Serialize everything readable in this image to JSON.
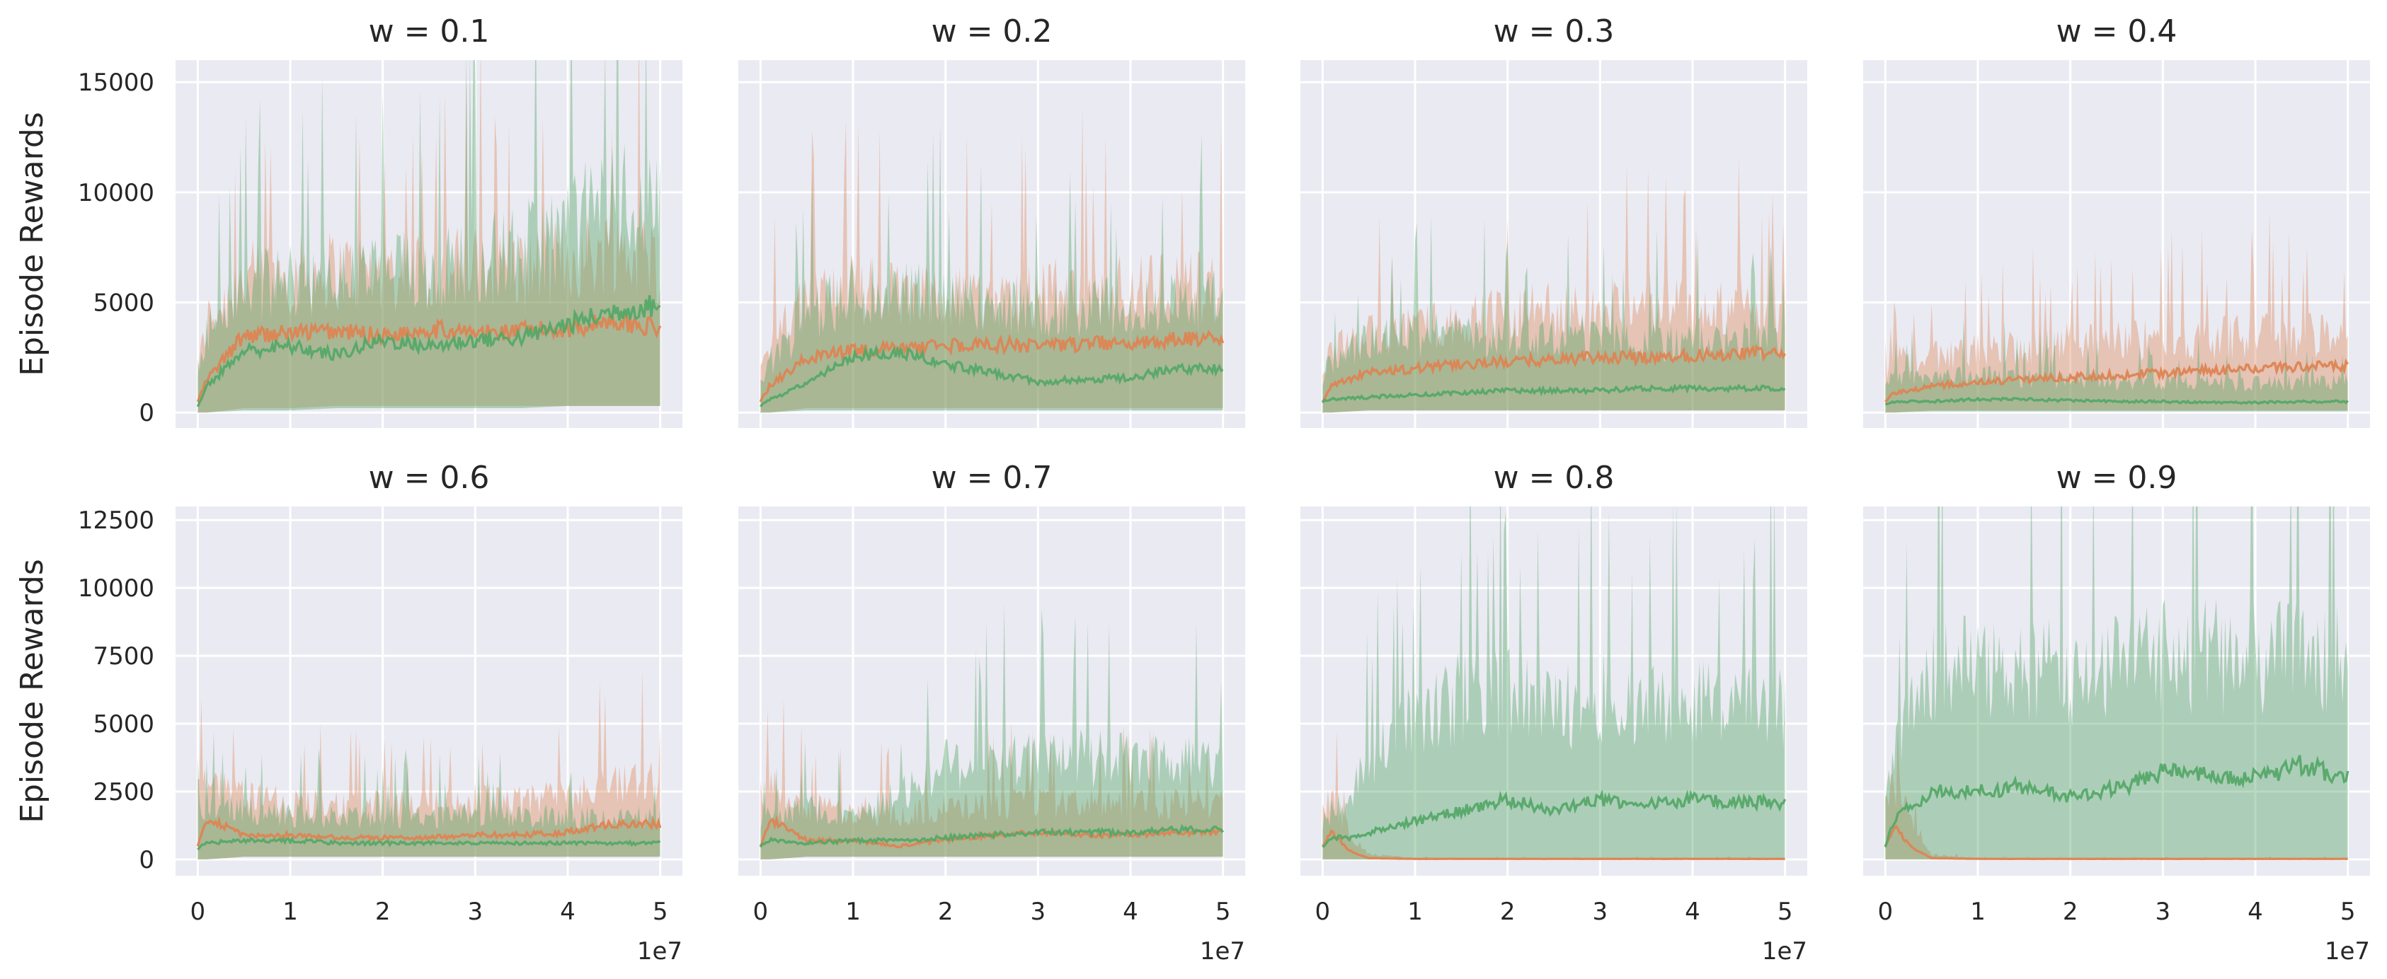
{
  "figure": {
    "ylabel": "Episode Rewards",
    "x_offset_text": "1e7",
    "colors": {
      "orange": "#dd8452",
      "green": "#55a868",
      "olive": "#a6915a"
    }
  },
  "chart_data": [
    {
      "type": "line",
      "title": "w = 0.1",
      "xlim": [
        0,
        50000000
      ],
      "ylim": [
        0,
        16000
      ],
      "grid": true,
      "x": [
        0,
        1000000,
        5000000,
        10000000,
        15000000,
        20000000,
        25000000,
        30000000,
        35000000,
        40000000,
        45000000,
        50000000
      ],
      "series": [
        {
          "color": "#dd8452",
          "values": [
            500,
            1500,
            3500,
            3600,
            3700,
            3500,
            3800,
            3600,
            3700,
            3800,
            4200,
            3800
          ],
          "band_upper": [
            2000,
            4500,
            6500,
            6800,
            7000,
            6800,
            7000,
            7200,
            7000,
            7500,
            8000,
            7500
          ],
          "band_lower": [
            0,
            0,
            200,
            200,
            300,
            300,
            300,
            300,
            300,
            300,
            300,
            300
          ]
        },
        {
          "color": "#55a868",
          "values": [
            300,
            1200,
            2800,
            3000,
            2600,
            3300,
            3000,
            3300,
            3400,
            4000,
            4600,
            4900
          ],
          "band_upper": [
            1500,
            4000,
            6000,
            6500,
            6500,
            7000,
            7000,
            7500,
            8000,
            9000,
            10500,
            10000
          ],
          "band_lower": [
            0,
            0,
            100,
            100,
            200,
            200,
            200,
            200,
            200,
            300,
            300,
            300
          ]
        }
      ]
    },
    {
      "type": "line",
      "title": "w = 0.2",
      "xlim": [
        0,
        50000000
      ],
      "ylim": [
        0,
        16000
      ],
      "grid": true,
      "x": [
        0,
        1000000,
        5000000,
        10000000,
        15000000,
        20000000,
        25000000,
        30000000,
        35000000,
        40000000,
        45000000,
        50000000
      ],
      "series": [
        {
          "color": "#dd8452",
          "values": [
            500,
            1200,
            2500,
            2800,
            2900,
            3000,
            3100,
            3000,
            3100,
            3200,
            3300,
            3300
          ],
          "band_upper": [
            2000,
            3500,
            5500,
            6000,
            5800,
            5800,
            5800,
            5800,
            6000,
            6000,
            6200,
            6000
          ],
          "band_lower": [
            0,
            0,
            200,
            200,
            200,
            200,
            200,
            200,
            200,
            200,
            200,
            200
          ]
        },
        {
          "color": "#55a868",
          "values": [
            300,
            600,
            1300,
            2600,
            2700,
            2200,
            1800,
            1400,
            1500,
            1600,
            2000,
            2000
          ],
          "band_upper": [
            1500,
            2500,
            4500,
            6000,
            5800,
            5500,
            5200,
            5200,
            5200,
            5200,
            5500,
            5500
          ],
          "band_lower": [
            0,
            0,
            100,
            100,
            100,
            100,
            100,
            100,
            100,
            100,
            100,
            100
          ]
        }
      ]
    },
    {
      "type": "line",
      "title": "w = 0.3",
      "xlim": [
        0,
        50000000
      ],
      "ylim": [
        0,
        16000
      ],
      "grid": true,
      "x": [
        0,
        1000000,
        5000000,
        10000000,
        15000000,
        20000000,
        25000000,
        30000000,
        35000000,
        40000000,
        45000000,
        50000000
      ],
      "series": [
        {
          "color": "#dd8452",
          "values": [
            500,
            1200,
            1800,
            2000,
            2200,
            2300,
            2400,
            2500,
            2500,
            2600,
            2700,
            2700
          ],
          "band_upper": [
            2000,
            3000,
            3800,
            4200,
            4500,
            4800,
            5000,
            5000,
            5000,
            5200,
            5200,
            5200
          ],
          "band_lower": [
            0,
            0,
            100,
            100,
            100,
            100,
            100,
            100,
            100,
            100,
            100,
            100
          ]
        },
        {
          "color": "#55a868",
          "values": [
            500,
            600,
            700,
            800,
            900,
            1000,
            1000,
            1000,
            1100,
            1100,
            1100,
            1100
          ],
          "band_upper": [
            1800,
            2500,
            3500,
            3800,
            3800,
            3600,
            3600,
            3600,
            3500,
            3500,
            3500,
            3500
          ],
          "band_lower": [
            0,
            0,
            100,
            100,
            100,
            100,
            100,
            100,
            100,
            100,
            100,
            100
          ]
        }
      ]
    },
    {
      "type": "line",
      "title": "w = 0.4",
      "xlim": [
        0,
        50000000
      ],
      "ylim": [
        0,
        16000
      ],
      "grid": true,
      "x": [
        0,
        1000000,
        5000000,
        10000000,
        15000000,
        20000000,
        25000000,
        30000000,
        35000000,
        40000000,
        45000000,
        50000000
      ],
      "series": [
        {
          "color": "#dd8452",
          "values": [
            500,
            900,
            1200,
            1400,
            1500,
            1600,
            1700,
            1800,
            1900,
            2000,
            2100,
            2100
          ],
          "band_upper": [
            2000,
            2500,
            2800,
            3000,
            3200,
            3400,
            3500,
            3600,
            3600,
            3800,
            3800,
            3800
          ],
          "band_lower": [
            0,
            0,
            100,
            100,
            100,
            100,
            100,
            100,
            100,
            100,
            100,
            100
          ]
        },
        {
          "color": "#55a868",
          "values": [
            400,
            500,
            500,
            600,
            600,
            550,
            500,
            500,
            450,
            450,
            500,
            500
          ],
          "band_upper": [
            1500,
            1800,
            1800,
            1800,
            1700,
            1600,
            1500,
            1500,
            1500,
            1400,
            1500,
            1500
          ],
          "band_lower": [
            0,
            0,
            50,
            50,
            50,
            50,
            50,
            50,
            50,
            50,
            50,
            50
          ]
        }
      ]
    },
    {
      "type": "line",
      "title": "w = 0.6",
      "xlim": [
        0,
        50000000
      ],
      "ylim": [
        0,
        13000
      ],
      "grid": true,
      "x": [
        0,
        1000000,
        5000000,
        10000000,
        15000000,
        20000000,
        25000000,
        30000000,
        35000000,
        40000000,
        45000000,
        50000000
      ],
      "series": [
        {
          "color": "#dd8452",
          "values": [
            500,
            1500,
            900,
            900,
            800,
            800,
            800,
            900,
            900,
            1000,
            1300,
            1300
          ],
          "band_upper": [
            2500,
            3000,
            2500,
            2200,
            2200,
            2200,
            2200,
            2400,
            2400,
            2600,
            3000,
            3000
          ],
          "band_lower": [
            0,
            0,
            100,
            100,
            100,
            100,
            100,
            100,
            100,
            100,
            100,
            100
          ]
        },
        {
          "color": "#55a868",
          "values": [
            400,
            600,
            700,
            700,
            600,
            600,
            600,
            600,
            600,
            600,
            600,
            600
          ],
          "band_upper": [
            1800,
            2200,
            2000,
            1800,
            1700,
            1700,
            1700,
            1700,
            1700,
            1700,
            1700,
            1700
          ],
          "band_lower": [
            0,
            0,
            100,
            100,
            100,
            100,
            100,
            100,
            100,
            100,
            100,
            100
          ]
        }
      ]
    },
    {
      "type": "line",
      "title": "w = 0.7",
      "xlim": [
        0,
        50000000
      ],
      "ylim": [
        0,
        13000
      ],
      "grid": true,
      "x": [
        0,
        1000000,
        5000000,
        10000000,
        15000000,
        20000000,
        25000000,
        30000000,
        35000000,
        40000000,
        45000000,
        50000000
      ],
      "series": [
        {
          "color": "#dd8452",
          "values": [
            500,
            1500,
            700,
            700,
            500,
            700,
            900,
            1000,
            900,
            900,
            1000,
            1000
          ],
          "band_upper": [
            2500,
            3000,
            2000,
            2000,
            1800,
            2000,
            2200,
            2200,
            2200,
            2200,
            2200,
            2200
          ],
          "band_lower": [
            0,
            0,
            100,
            100,
            100,
            100,
            100,
            100,
            100,
            100,
            100,
            100
          ]
        },
        {
          "color": "#55a868",
          "values": [
            500,
            700,
            600,
            700,
            700,
            800,
            900,
            1000,
            1000,
            1000,
            1100,
            1100
          ],
          "band_upper": [
            1500,
            2000,
            2000,
            1800,
            2500,
            3800,
            4000,
            4000,
            4000,
            4000,
            4000,
            4000
          ],
          "band_lower": [
            0,
            0,
            100,
            100,
            100,
            100,
            100,
            100,
            100,
            100,
            100,
            100
          ]
        }
      ]
    },
    {
      "type": "line",
      "title": "w = 0.8",
      "xlim": [
        0,
        50000000
      ],
      "ylim": [
        0,
        13000
      ],
      "grid": true,
      "x": [
        0,
        1000000,
        3000000,
        5000000,
        10000000,
        15000000,
        20000000,
        25000000,
        30000000,
        35000000,
        40000000,
        45000000,
        50000000
      ],
      "series": [
        {
          "color": "#dd8452",
          "values": [
            500,
            1000,
            300,
            50,
            20,
            20,
            20,
            20,
            20,
            20,
            20,
            20,
            20
          ],
          "band_upper": [
            2000,
            2500,
            1000,
            200,
            50,
            50,
            50,
            50,
            50,
            50,
            50,
            50,
            50
          ],
          "band_lower": [
            0,
            0,
            0,
            0,
            0,
            0,
            0,
            0,
            0,
            0,
            0,
            0,
            0
          ]
        },
        {
          "color": "#55a868",
          "values": [
            500,
            800,
            800,
            1000,
            1400,
            1800,
            2200,
            1800,
            2200,
            2000,
            2200,
            2100,
            2100
          ],
          "band_upper": [
            1500,
            2000,
            2500,
            4000,
            5500,
            6500,
            6500,
            6000,
            6500,
            6000,
            6500,
            6000,
            6000
          ],
          "band_lower": [
            0,
            0,
            0,
            0,
            0,
            0,
            0,
            0,
            0,
            0,
            0,
            0,
            0
          ]
        }
      ]
    },
    {
      "type": "line",
      "title": "w = 0.9",
      "xlim": [
        0,
        50000000
      ],
      "ylim": [
        0,
        13000
      ],
      "grid": true,
      "x": [
        0,
        1000000,
        3000000,
        5000000,
        10000000,
        15000000,
        20000000,
        25000000,
        30000000,
        35000000,
        40000000,
        45000000,
        50000000
      ],
      "series": [
        {
          "color": "#dd8452",
          "values": [
            500,
            1200,
            400,
            50,
            20,
            20,
            20,
            20,
            20,
            20,
            20,
            20,
            20
          ],
          "band_upper": [
            2500,
            3000,
            1500,
            200,
            50,
            50,
            50,
            50,
            50,
            50,
            50,
            50,
            50
          ],
          "band_lower": [
            0,
            0,
            0,
            0,
            0,
            0,
            0,
            0,
            0,
            0,
            0,
            0,
            0
          ]
        },
        {
          "color": "#55a868",
          "values": [
            500,
            1500,
            2000,
            2500,
            2500,
            2700,
            2300,
            2600,
            3200,
            3100,
            3000,
            3500,
            3000
          ],
          "band_upper": [
            2000,
            4000,
            6000,
            7500,
            7500,
            7500,
            7500,
            7500,
            8000,
            8000,
            8000,
            8000,
            8000
          ],
          "band_lower": [
            0,
            0,
            0,
            0,
            0,
            0,
            0,
            0,
            0,
            0,
            0,
            0,
            0
          ]
        }
      ]
    }
  ],
  "axes": {
    "top_row_yticks": [
      0,
      5000,
      10000,
      15000
    ],
    "top_row_ytick_labels": [
      "0",
      "5000",
      "10000",
      "15000"
    ],
    "bottom_row_yticks": [
      0,
      2500,
      5000,
      7500,
      10000,
      12500
    ],
    "bottom_row_ytick_labels": [
      "0",
      "2500",
      "5000",
      "7500",
      "10000",
      "12500"
    ],
    "xticks": [
      0,
      10000000,
      20000000,
      30000000,
      40000000,
      50000000
    ],
    "xtick_labels": [
      "0",
      "1",
      "2",
      "3",
      "4",
      "5"
    ]
  }
}
